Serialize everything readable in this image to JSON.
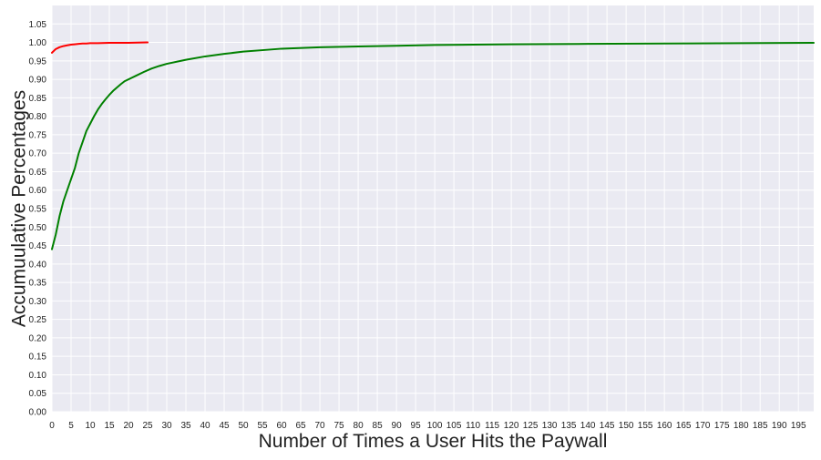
{
  "chart_data": {
    "type": "line",
    "title": "",
    "xlabel": "Number of Times a User Hits the Paywall",
    "ylabel": "Accumuulative Percentages",
    "xlim": [
      0,
      199
    ],
    "ylim": [
      0,
      1.1
    ],
    "x_ticks": [
      0,
      5,
      10,
      15,
      20,
      25,
      30,
      35,
      40,
      45,
      50,
      55,
      60,
      65,
      70,
      75,
      80,
      85,
      90,
      95,
      100,
      105,
      110,
      115,
      120,
      125,
      130,
      135,
      140,
      145,
      150,
      155,
      160,
      165,
      170,
      175,
      180,
      185,
      190,
      195
    ],
    "y_ticks": [
      0.0,
      0.05,
      0.1,
      0.15,
      0.2,
      0.25,
      0.3,
      0.35,
      0.4,
      0.45,
      0.5,
      0.55,
      0.6,
      0.65,
      0.7,
      0.75,
      0.8,
      0.85,
      0.9,
      0.95,
      1.0,
      1.05
    ],
    "grid": true,
    "legend": false,
    "background_color": "#eaeaf2",
    "grid_color": "#ffffff",
    "series": [
      {
        "color": "#ff0000",
        "x": [
          0,
          1,
          2,
          3,
          4,
          5,
          6,
          7,
          8,
          9,
          10,
          12,
          15,
          20,
          25
        ],
        "y": [
          0.972,
          0.982,
          0.987,
          0.99,
          0.992,
          0.994,
          0.995,
          0.996,
          0.997,
          0.997,
          0.998,
          0.998,
          0.999,
          0.999,
          1.0
        ]
      },
      {
        "color": "#008000",
        "x": [
          0,
          1,
          2,
          3,
          4,
          5,
          6,
          7,
          8,
          9,
          10,
          11,
          12,
          13,
          14,
          15,
          16,
          17,
          18,
          19,
          20,
          22,
          24,
          26,
          28,
          30,
          35,
          40,
          45,
          50,
          55,
          60,
          70,
          80,
          90,
          100,
          110,
          120,
          140,
          160,
          180,
          199
        ],
        "y": [
          0.44,
          0.48,
          0.53,
          0.57,
          0.6,
          0.63,
          0.66,
          0.7,
          0.73,
          0.76,
          0.78,
          0.8,
          0.818,
          0.833,
          0.846,
          0.858,
          0.869,
          0.878,
          0.887,
          0.895,
          0.9,
          0.91,
          0.92,
          0.929,
          0.936,
          0.942,
          0.953,
          0.962,
          0.969,
          0.975,
          0.979,
          0.983,
          0.987,
          0.989,
          0.991,
          0.993,
          0.994,
          0.995,
          0.996,
          0.997,
          0.998,
          0.999
        ]
      }
    ]
  }
}
